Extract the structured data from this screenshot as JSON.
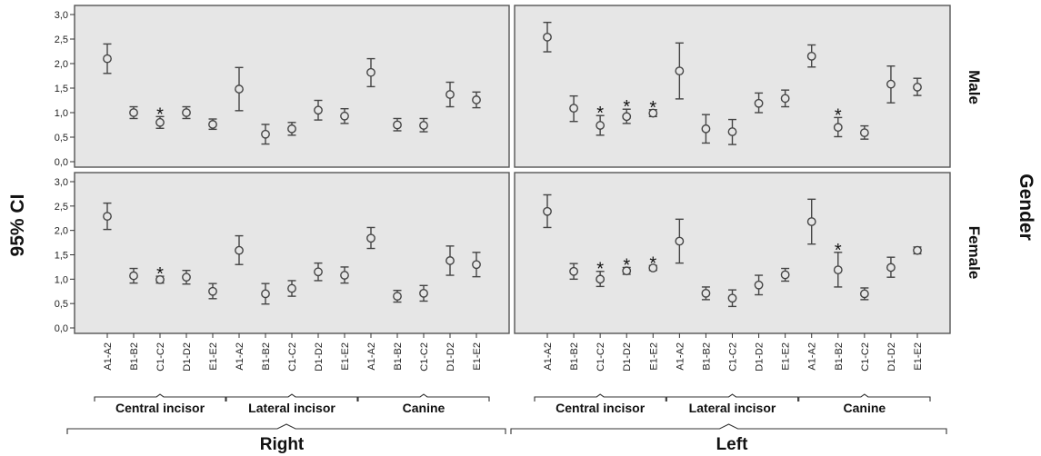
{
  "chart_data": {
    "type": "error-bar",
    "ylabel": "95% CI",
    "facet_row_title": "Gender",
    "rows": [
      "Male",
      "Female"
    ],
    "columns": [
      "Right",
      "Left"
    ],
    "groups": [
      "Central incisor",
      "Lateral incisor",
      "Canine"
    ],
    "categories": [
      "A1-A2",
      "B1-B2",
      "C1-C2",
      "D1-D2",
      "E1-E2",
      "A1-A2",
      "B1-B2",
      "C1-C2",
      "D1-D2",
      "E1-E2",
      "A1-A2",
      "B1-B2",
      "C1-C2",
      "D1-D2",
      "E1-E2"
    ],
    "yticks": [
      "0,0",
      "0,5",
      "1,0",
      "1,5",
      "2,0",
      "2,5",
      "3,0"
    ],
    "ylim": [
      0,
      3
    ],
    "grid": false,
    "panel_background": "#e6e6e6",
    "panels": [
      {
        "row": "Male",
        "column": "Right",
        "mean": [
          2.1,
          1.0,
          0.8,
          1.0,
          0.76,
          1.48,
          0.56,
          0.67,
          1.05,
          0.93,
          1.82,
          0.75,
          0.74,
          1.37,
          1.26
        ],
        "lower": [
          1.8,
          0.88,
          0.68,
          0.88,
          0.66,
          1.04,
          0.36,
          0.54,
          0.85,
          0.78,
          1.53,
          0.63,
          0.61,
          1.12,
          1.1
        ],
        "upper": [
          2.4,
          1.12,
          0.92,
          1.12,
          0.87,
          1.92,
          0.76,
          0.8,
          1.25,
          1.08,
          2.1,
          0.88,
          0.88,
          1.62,
          1.42
        ],
        "significant": [
          "C1-C2 (Central incisor)"
        ]
      },
      {
        "row": "Male",
        "column": "Left",
        "mean": [
          2.54,
          1.09,
          0.74,
          0.92,
          0.99,
          1.85,
          0.67,
          0.61,
          1.19,
          1.29,
          2.15,
          0.7,
          0.59,
          1.58,
          1.52
        ],
        "lower": [
          2.24,
          0.82,
          0.54,
          0.78,
          0.92,
          1.28,
          0.38,
          0.35,
          1.0,
          1.12,
          1.93,
          0.51,
          0.46,
          1.2,
          1.35
        ],
        "upper": [
          2.84,
          1.34,
          0.94,
          1.07,
          1.06,
          2.42,
          0.96,
          0.86,
          1.4,
          1.46,
          2.38,
          0.9,
          0.73,
          1.95,
          1.7
        ],
        "significant": [
          "C1-C2 (Central incisor)",
          "D1-D2 (Central incisor)",
          "E1-E2 (Central incisor)",
          "B1-B2 (Canine)"
        ]
      },
      {
        "row": "Female",
        "column": "Right",
        "mean": [
          2.29,
          1.07,
          0.99,
          1.04,
          0.75,
          1.59,
          0.7,
          0.81,
          1.15,
          1.08,
          1.84,
          0.65,
          0.71,
          1.38,
          1.3
        ],
        "lower": [
          2.02,
          0.92,
          0.92,
          0.9,
          0.6,
          1.3,
          0.49,
          0.65,
          0.97,
          0.92,
          1.63,
          0.53,
          0.55,
          1.08,
          1.05
        ],
        "upper": [
          2.56,
          1.22,
          1.06,
          1.18,
          0.91,
          1.89,
          0.91,
          0.97,
          1.33,
          1.25,
          2.06,
          0.77,
          0.87,
          1.68,
          1.55
        ],
        "significant": [
          "C1-C2 (Central incisor)"
        ]
      },
      {
        "row": "Female",
        "column": "Left",
        "mean": [
          2.39,
          1.16,
          1.0,
          1.17,
          1.23,
          1.78,
          0.71,
          0.61,
          0.88,
          1.09,
          2.18,
          1.19,
          0.7,
          1.24,
          1.59
        ],
        "lower": [
          2.06,
          1.0,
          0.85,
          1.1,
          1.18,
          1.33,
          0.58,
          0.44,
          0.68,
          0.96,
          1.72,
          0.84,
          0.58,
          1.04,
          1.52
        ],
        "upper": [
          2.73,
          1.32,
          1.16,
          1.24,
          1.28,
          2.23,
          0.84,
          0.78,
          1.08,
          1.22,
          2.64,
          1.55,
          0.82,
          1.45,
          1.66
        ],
        "significant": [
          "C1-C2 (Central incisor)",
          "D1-D2 (Central incisor)",
          "E1-E2 (Central incisor)",
          "B1-B2 (Canine)"
        ]
      }
    ],
    "star_label": "*",
    "colors": {
      "marker": "#444444",
      "frame": "#555555",
      "background": "#e6e6e6"
    }
  }
}
